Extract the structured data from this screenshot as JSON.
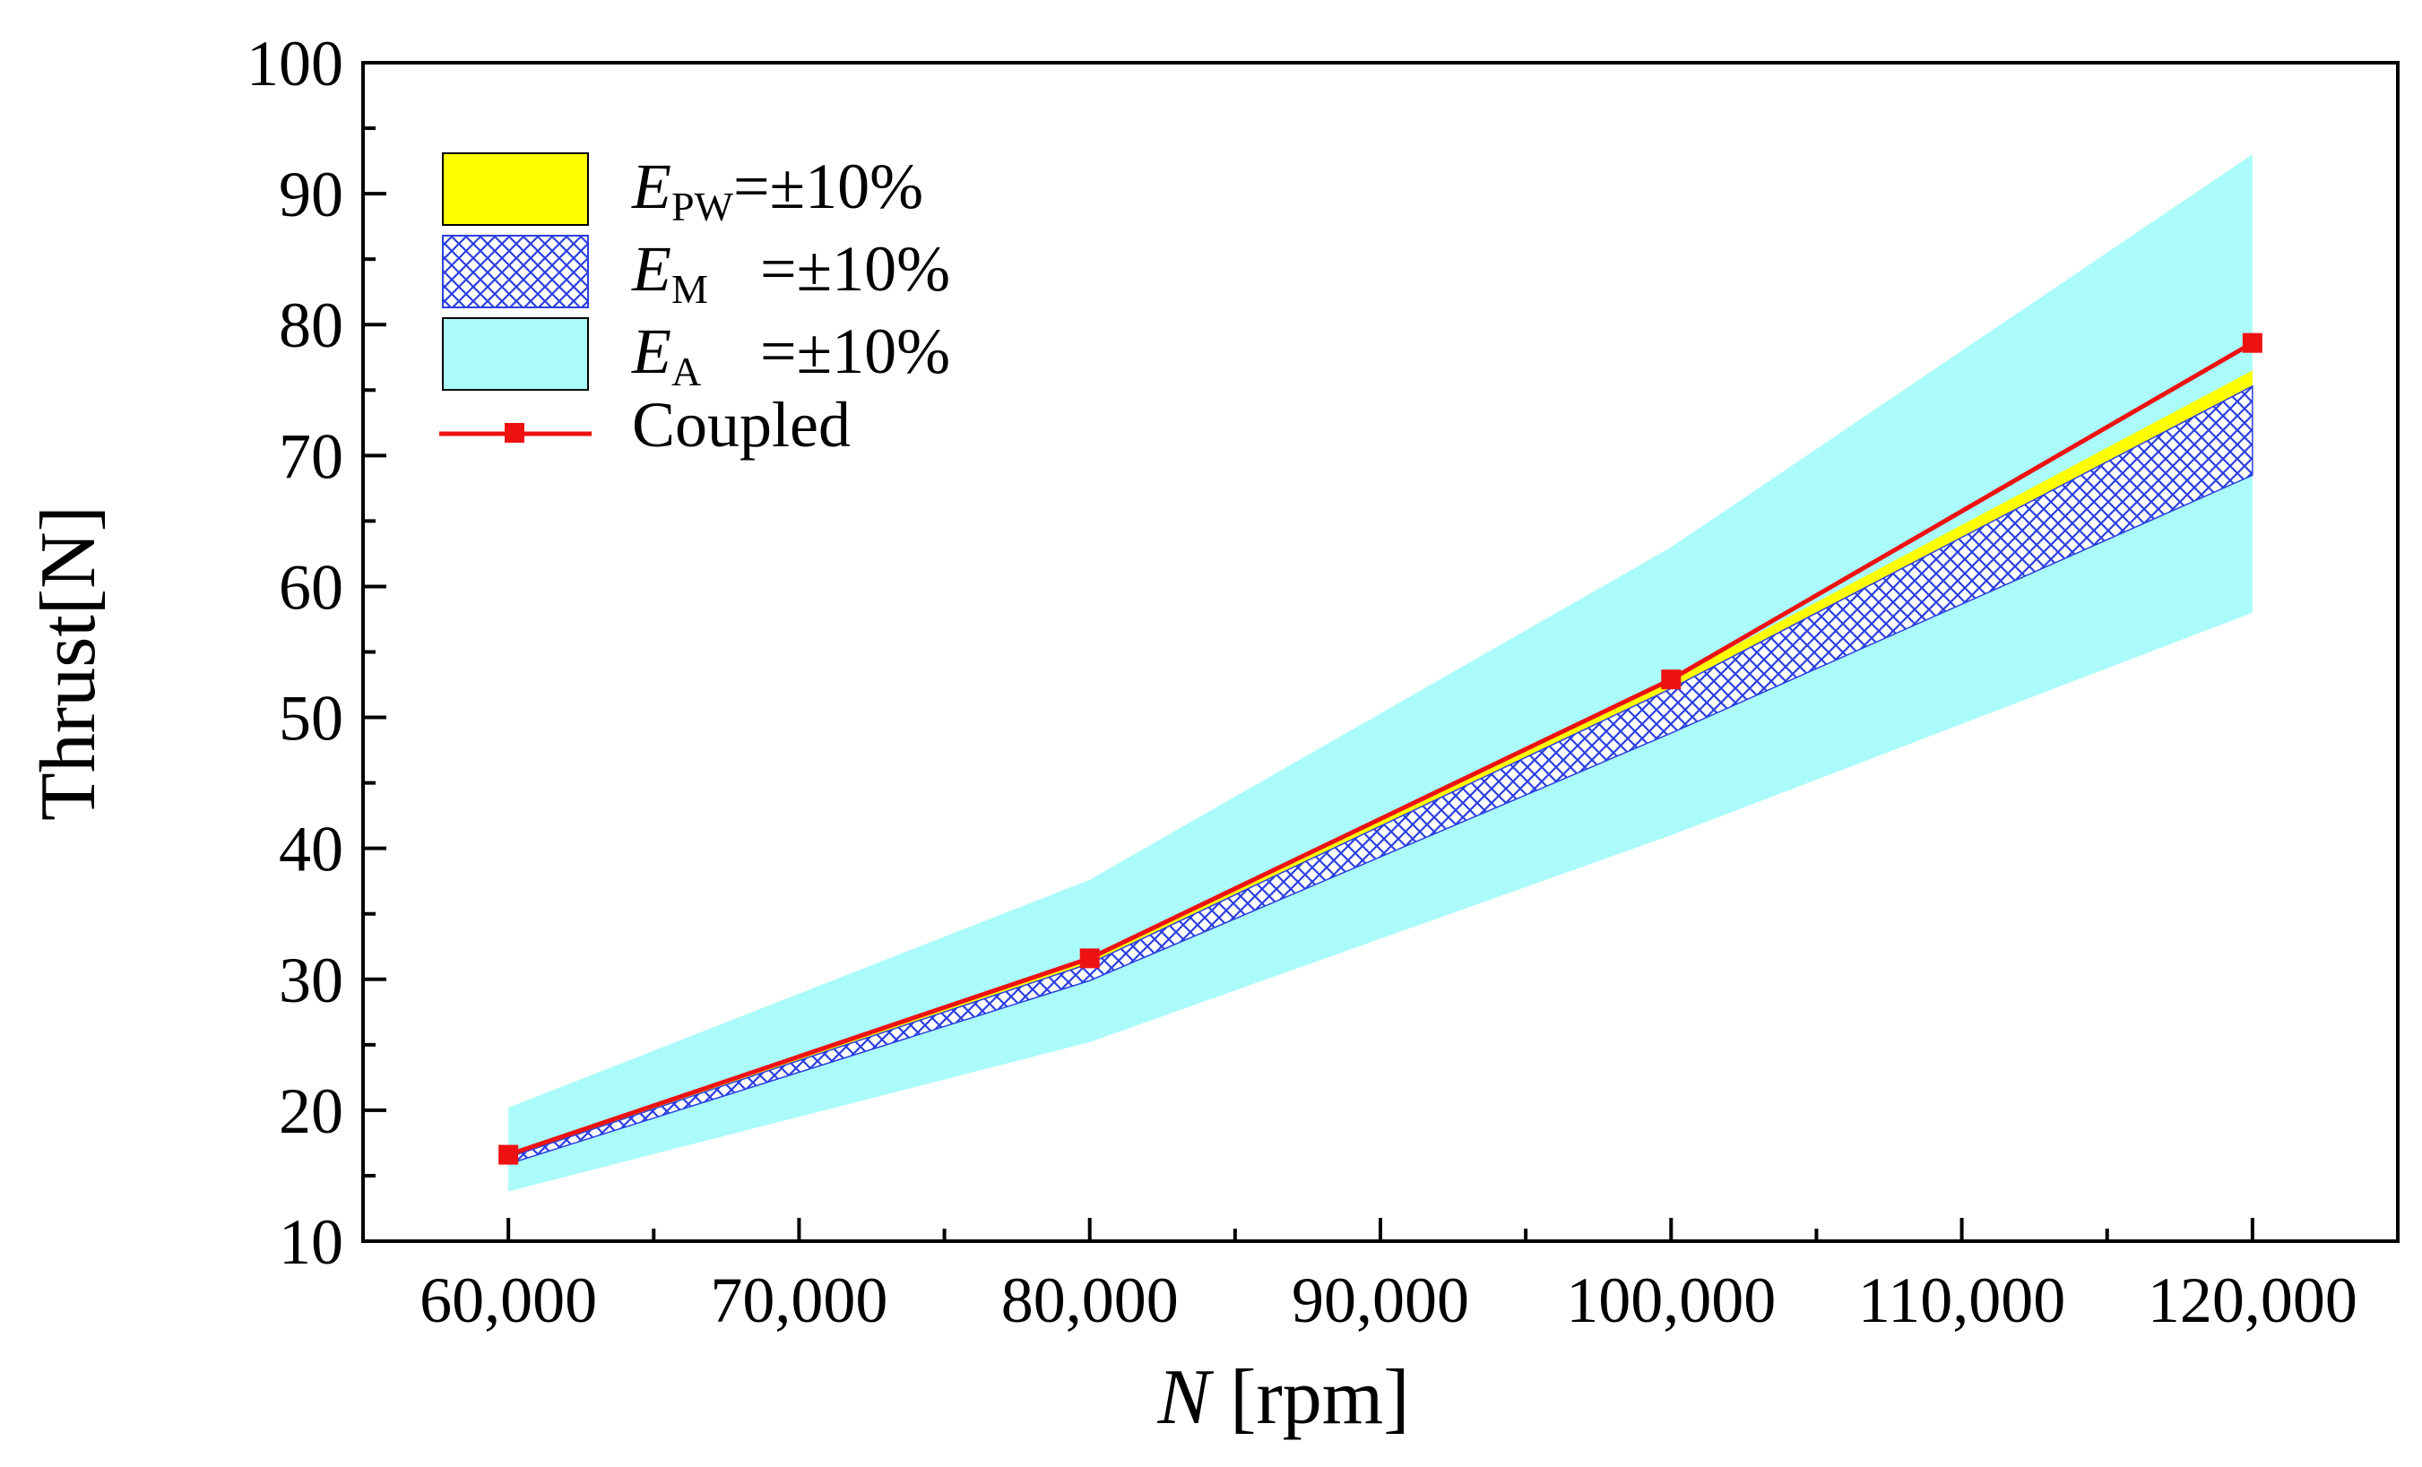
{
  "chart_data": {
    "type": "area",
    "x_label": {
      "italic": "N",
      "rest": " [rpm]"
    },
    "y_label": "Thrust[N]",
    "xlim": [
      55000,
      125000
    ],
    "ylim": [
      10,
      100
    ],
    "x_major_ticks": [
      60000,
      70000,
      80000,
      90000,
      100000,
      110000,
      120000
    ],
    "x_tick_labels": [
      "60,000",
      "70,000",
      "80,000",
      "90,000",
      "100,000",
      "110,000",
      "120,000"
    ],
    "x_minor_ticks": [
      65000,
      75000,
      85000,
      95000,
      105000,
      115000
    ],
    "y_major_ticks": [
      10,
      20,
      30,
      40,
      50,
      60,
      70,
      80,
      90,
      100
    ],
    "y_tick_labels": [
      "10",
      "20",
      "30",
      "40",
      "50",
      "60",
      "70",
      "80",
      "90",
      "100"
    ],
    "y_minor_ticks": [
      15,
      25,
      35,
      45,
      55,
      65,
      75,
      85,
      95
    ],
    "x": [
      60000,
      80000,
      100000,
      120000
    ],
    "bands": [
      {
        "name": "E_A",
        "lower": [
          13.8,
          25.2,
          41.0,
          58.0
        ],
        "upper": [
          20.2,
          37.6,
          63.0,
          93.0
        ],
        "color": "#aafbfa"
      },
      {
        "name": "E_PW",
        "lower": [
          15.9,
          29.9,
          48.8,
          68.5
        ],
        "upper": [
          16.6,
          31.6,
          52.9,
          76.5
        ],
        "color": "#ffff00"
      },
      {
        "name": "E_M",
        "lower": [
          15.9,
          29.9,
          48.8,
          68.5
        ],
        "upper": [
          16.4,
          31.2,
          52.2,
          75.3
        ],
        "color": "#2b3fe0"
      }
    ],
    "series": [
      {
        "name": "Coupled",
        "values": [
          16.6,
          31.6,
          52.9,
          78.6
        ],
        "color": "#ee1111"
      }
    ],
    "legend": {
      "position": "top-left",
      "entries": [
        {
          "symbol": "E",
          "sub": "PW",
          "text": "=±10%"
        },
        {
          "symbol": "E",
          "sub": "M",
          "text": "=±10%"
        },
        {
          "symbol": "E",
          "sub": "A",
          "text": "=±10%"
        },
        {
          "symbol": "",
          "sub": "",
          "text": "Coupled"
        }
      ]
    }
  }
}
